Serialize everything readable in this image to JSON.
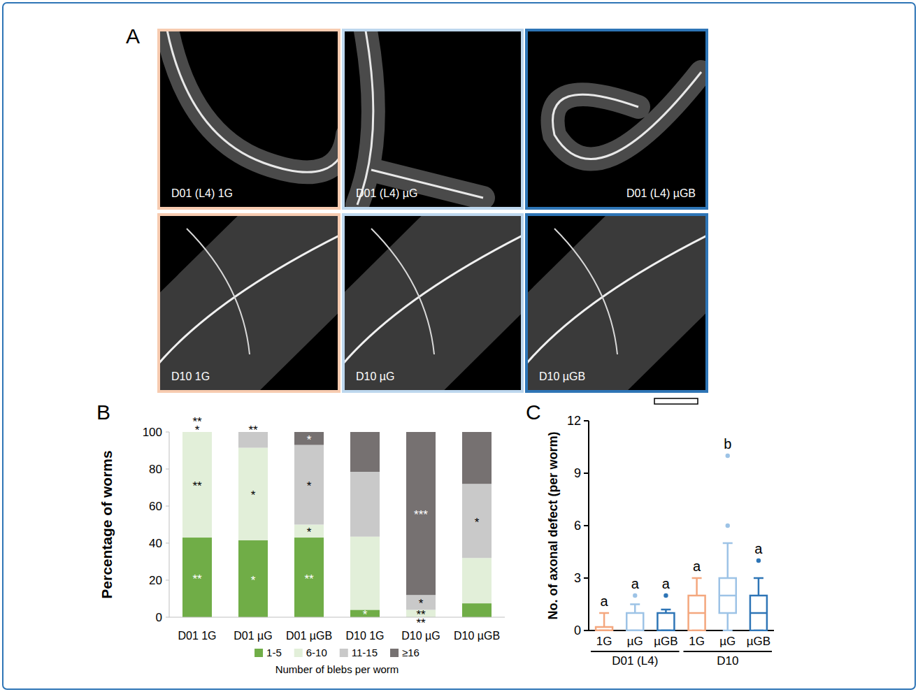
{
  "micrographs": {
    "panel": "A",
    "images": [
      {
        "label": "D01 (L4) 1G",
        "color": "#f7cbb0"
      },
      {
        "label": "D01 (L4) µG",
        "color": "#bdd7ee"
      },
      {
        "label": "D01 (L4) µGB",
        "color": "#2e75b6"
      },
      {
        "label": "D10 1G",
        "color": "#f7cbb0"
      },
      {
        "label": "D10 µG",
        "color": "#bdd7ee"
      },
      {
        "label": "D10 µGB",
        "color": "#2e75b6"
      }
    ]
  },
  "chart_data": [
    {
      "panel": "B",
      "type": "bar",
      "stacked": true,
      "y_label": "Percentage of worms",
      "x_label": "Number of blebs per worm",
      "categories": [
        "D01 1G",
        "D01 µG",
        "D01 µGB",
        "D10 1G",
        "D10 µG",
        "D10 µGB"
      ],
      "ylim": [
        0,
        100
      ],
      "yticks": [
        0,
        20,
        40,
        60,
        80,
        100
      ],
      "legend": "bottom",
      "series": [
        {
          "name": "1-5",
          "color": "#70ad47",
          "values": [
            43,
            41.5,
            43,
            4,
            0,
            7.5
          ],
          "significance": [
            "**",
            "*",
            "**",
            "*",
            "**",
            null
          ]
        },
        {
          "name": "6-10",
          "color": "#e2efd9",
          "values": [
            57,
            50,
            7,
            39.5,
            4,
            24.5
          ],
          "significance": [
            "**",
            "*",
            "*",
            null,
            "**",
            null
          ]
        },
        {
          "name": "11-15",
          "color": "#c9c9c9",
          "values": [
            0,
            8.5,
            43,
            35,
            8,
            40
          ],
          "significance": [
            "*",
            null,
            "*",
            null,
            "*",
            "*"
          ]
        },
        {
          "name": "≥16",
          "color": "#767171",
          "values": [
            0,
            0,
            7,
            21.5,
            88,
            28
          ],
          "significance": [
            "**",
            "**",
            "*",
            null,
            "***",
            null
          ]
        }
      ]
    },
    {
      "panel": "C",
      "type": "box",
      "y_label": "No. of axonal defect (per worm)",
      "categories": [
        "1G",
        "µG",
        "µGB",
        "1G",
        "µG",
        "µGB"
      ],
      "groups": [
        {
          "label": "D01 (L4)",
          "size": 3
        },
        {
          "label": "D10",
          "size": 3
        }
      ],
      "ylim": [
        0,
        12
      ],
      "yticks": [
        0,
        3,
        6,
        9,
        12
      ],
      "colors": [
        "#f4a77e",
        "#9dc3e6",
        "#2e75b6",
        "#f4a77e",
        "#9dc3e6",
        "#2e75b6"
      ],
      "boxes": [
        {
          "min": 0,
          "q1": 0,
          "median": 0,
          "q3": 0.2,
          "max": 1,
          "outliers": []
        },
        {
          "min": 0,
          "q1": 0,
          "median": 0,
          "q3": 1,
          "max": 1.5,
          "outliers": [
            2
          ]
        },
        {
          "min": 0,
          "q1": 0,
          "median": 0,
          "q3": 1,
          "max": 1.2,
          "outliers": [
            2
          ]
        },
        {
          "min": 0,
          "q1": 0,
          "median": 1,
          "q3": 2,
          "max": 3,
          "outliers": []
        },
        {
          "min": 0,
          "q1": 1,
          "median": 2,
          "q3": 3,
          "max": 5,
          "outliers": [
            6,
            10
          ]
        },
        {
          "min": 0,
          "q1": 0,
          "median": 1,
          "q3": 2,
          "max": 3,
          "outliers": [
            4
          ]
        }
      ],
      "letters": [
        "a",
        "a",
        "a",
        "a",
        "b",
        "a"
      ]
    }
  ]
}
